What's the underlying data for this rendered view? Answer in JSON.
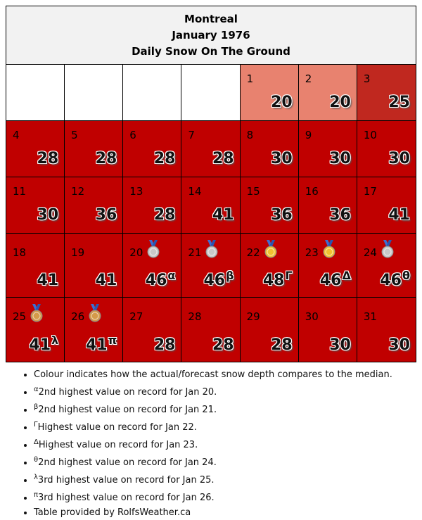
{
  "header": {
    "city": "Montreal",
    "month": "January 1976",
    "subtitle": "Daily Snow On The Ground"
  },
  "colors": {
    "empty": "#ffffff",
    "light": "#e8826f",
    "mid": "#c0281f",
    "dark": "#c00000",
    "silver": "#c8c8c8",
    "bronze": "#d49a4a",
    "gold": "#f0c030"
  },
  "weeks": [
    [
      {
        "empty": true
      },
      {
        "empty": true
      },
      {
        "empty": true
      },
      {
        "empty": true
      },
      {
        "day": "1",
        "value": "20",
        "color": "light"
      },
      {
        "day": "2",
        "value": "20",
        "color": "light"
      },
      {
        "day": "3",
        "value": "25",
        "color": "mid"
      }
    ],
    [
      {
        "day": "4",
        "value": "28",
        "color": "dark"
      },
      {
        "day": "5",
        "value": "28",
        "color": "dark"
      },
      {
        "day": "6",
        "value": "28",
        "color": "dark"
      },
      {
        "day": "7",
        "value": "28",
        "color": "dark"
      },
      {
        "day": "8",
        "value": "30",
        "color": "dark"
      },
      {
        "day": "9",
        "value": "30",
        "color": "dark"
      },
      {
        "day": "10",
        "value": "30",
        "color": "dark"
      }
    ],
    [
      {
        "day": "11",
        "value": "30",
        "color": "dark"
      },
      {
        "day": "12",
        "value": "36",
        "color": "dark"
      },
      {
        "day": "13",
        "value": "28",
        "color": "dark"
      },
      {
        "day": "14",
        "value": "41",
        "color": "dark"
      },
      {
        "day": "15",
        "value": "36",
        "color": "dark"
      },
      {
        "day": "16",
        "value": "36",
        "color": "dark"
      },
      {
        "day": "17",
        "value": "41",
        "color": "dark"
      }
    ],
    [
      {
        "day": "18",
        "value": "41",
        "color": "dark"
      },
      {
        "day": "19",
        "value": "41",
        "color": "dark"
      },
      {
        "day": "20",
        "value": "46",
        "sup": "α",
        "medal": "silver",
        "color": "dark"
      },
      {
        "day": "21",
        "value": "46",
        "sup": "β",
        "medal": "silver",
        "color": "dark"
      },
      {
        "day": "22",
        "value": "48",
        "sup": "Γ",
        "medal": "gold",
        "color": "dark"
      },
      {
        "day": "23",
        "value": "46",
        "sup": "Δ",
        "medal": "gold",
        "color": "dark"
      },
      {
        "day": "24",
        "value": "46",
        "sup": "θ",
        "medal": "silver",
        "color": "dark"
      }
    ],
    [
      {
        "day": "25",
        "value": "41",
        "sup": "λ",
        "medal": "bronze",
        "color": "dark"
      },
      {
        "day": "26",
        "value": "41",
        "sup": "π",
        "medal": "bronze",
        "color": "dark"
      },
      {
        "day": "27",
        "value": "28",
        "color": "dark"
      },
      {
        "day": "28",
        "value": "28",
        "color": "dark"
      },
      {
        "day": "29",
        "value": "28",
        "color": "dark"
      },
      {
        "day": "30",
        "value": "30",
        "color": "dark"
      },
      {
        "day": "31",
        "value": "30",
        "color": "dark"
      }
    ]
  ],
  "notes": [
    {
      "sup": "",
      "text": "Colour indicates how the actual/forecast snow depth compares to the median."
    },
    {
      "sup": "α",
      "text": "2nd highest value on record for Jan 20."
    },
    {
      "sup": "β",
      "text": "2nd highest value on record for Jan 21."
    },
    {
      "sup": "Γ",
      "text": "Highest value on record for Jan 22."
    },
    {
      "sup": "Δ",
      "text": "Highest value on record for Jan 23."
    },
    {
      "sup": "θ",
      "text": "2nd highest value on record for Jan 24."
    },
    {
      "sup": "λ",
      "text": "3rd highest value on record for Jan 25."
    },
    {
      "sup": "π",
      "text": "3rd highest value on record for Jan 26."
    },
    {
      "sup": "",
      "text": "Table provided by RolfsWeather.ca"
    }
  ]
}
